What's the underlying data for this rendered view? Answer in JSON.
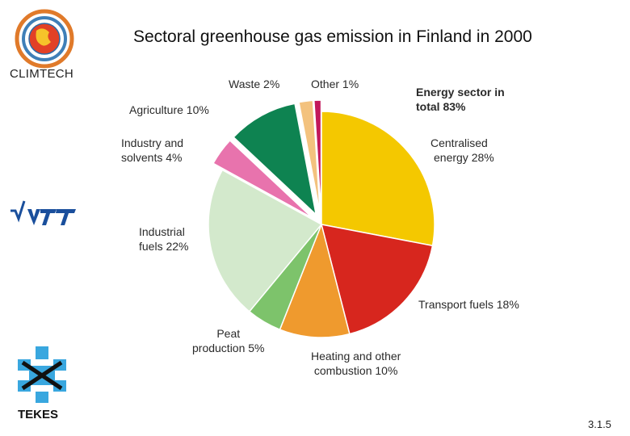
{
  "title": "Sectoral greenhouse gas emission in Finland in 2000",
  "logos": {
    "climtech": "CLIMTECH",
    "tekes": "TEKES"
  },
  "slide_number": "3.1.5",
  "colors": {
    "centralised": "#f4c800",
    "transport": "#d7261e",
    "heating": "#ef9a2e",
    "peat": "#7dc36b",
    "industrial": "#d3e9cc",
    "industry_solvents": "#e873ad",
    "agriculture": "#0e8351",
    "waste": "#f3c27e",
    "other": "#c2185b"
  },
  "chart_data": {
    "type": "pie",
    "title": "Sectoral greenhouse gas emission in Finland in 2000",
    "group_label": {
      "line1": "Energy sector in",
      "line2": "total 83%",
      "share": 83
    },
    "slices": [
      {
        "key": "centralised",
        "label_lines": [
          "Centralised",
          "energy 28%"
        ],
        "value": 28
      },
      {
        "key": "transport",
        "label_lines": [
          "Transport fuels 18%"
        ],
        "value": 18
      },
      {
        "key": "heating",
        "label_lines": [
          "Heating and other",
          "combustion 10%"
        ],
        "value": 10
      },
      {
        "key": "peat",
        "label_lines": [
          "Peat",
          "production 5%"
        ],
        "value": 5
      },
      {
        "key": "industrial",
        "label_lines": [
          "Industrial",
          "fuels 22%"
        ],
        "value": 22
      },
      {
        "key": "industry_solvents",
        "label_lines": [
          "Industry and",
          "solvents 4%"
        ],
        "value": 4,
        "exploded": true
      },
      {
        "key": "agriculture",
        "label_lines": [
          "Agriculture 10%"
        ],
        "value": 10,
        "exploded": true
      },
      {
        "key": "waste",
        "label_lines": [
          "Waste 2%"
        ],
        "value": 2,
        "exploded": true
      },
      {
        "key": "other",
        "label_lines": [
          "Other 1%"
        ],
        "value": 1,
        "exploded": true
      }
    ]
  }
}
